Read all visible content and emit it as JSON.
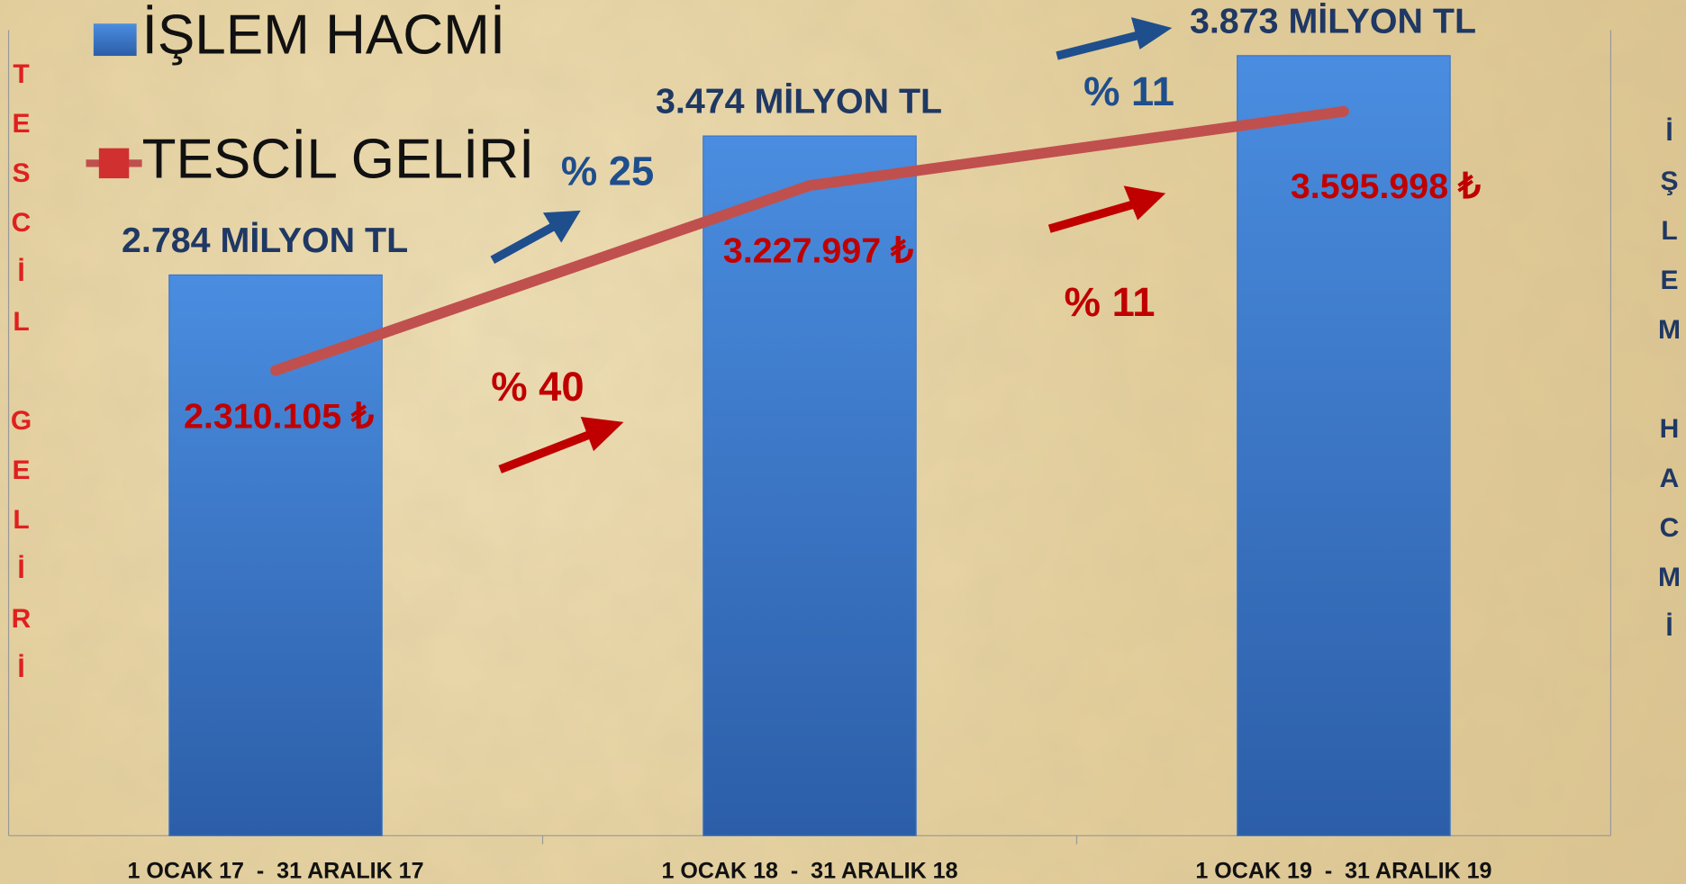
{
  "chart_data": {
    "type": "bar_line",
    "categories": [
      "1 OCAK 17  -  31 ARALIK 17",
      "1 OCAK 18  -  31 ARALIK 18",
      "1 OCAK 19  -  31 ARALIK 19"
    ],
    "series": [
      {
        "name": "İŞLEM HACMİ",
        "type": "bar",
        "color": "#3a75c8",
        "axis": "y2",
        "values": [
          2784,
          3474,
          3873
        ],
        "value_labels": [
          "2.784 MİLYON TL",
          "3.474 MİLYON TL",
          "3.873 MİLYON TL"
        ]
      },
      {
        "name": "TESCİL GELİRİ",
        "type": "line",
        "color": "#c0504d",
        "values": [
          2310105,
          3227997,
          3595998
        ],
        "value_labels": [
          "2.310.105 ₺",
          "3.227.997 ₺",
          "3.595.998 ₺"
        ]
      }
    ],
    "ylim": [
      0,
      4000000
    ],
    "y2lim": [
      0,
      4000
    ],
    "ylabel": "TESCİL GELİRİ",
    "y2label": "İŞLEM HACMİ",
    "annotations": [
      {
        "text": "% 25",
        "color": "#1f4e8c"
      },
      {
        "text": "% 11",
        "color": "#1f4e8c"
      },
      {
        "text": "% 40",
        "color": "#c00000"
      },
      {
        "text": "% 11",
        "color": "#c00000"
      }
    ]
  }
}
